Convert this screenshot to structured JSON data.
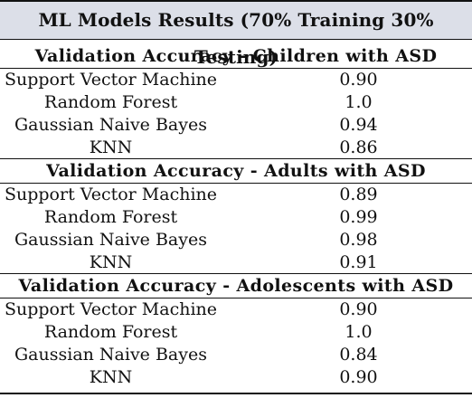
{
  "title": "ML Models Results (70% Training 30% Testing)",
  "sections": [
    {
      "heading": "Validation Accuracy - Children with ASD",
      "rows": [
        {
          "model": "Support Vector Machine",
          "accuracy": "0.90"
        },
        {
          "model": "Random Forest",
          "accuracy": "1.0"
        },
        {
          "model": "Gaussian Naive Bayes",
          "accuracy": "0.94"
        },
        {
          "model": "KNN",
          "accuracy": "0.86"
        }
      ]
    },
    {
      "heading": "Validation Accuracy - Adults with ASD",
      "rows": [
        {
          "model": "Support Vector Machine",
          "accuracy": "0.89"
        },
        {
          "model": "Random Forest",
          "accuracy": "0.99"
        },
        {
          "model": "Gaussian Naive Bayes",
          "accuracy": "0.98"
        },
        {
          "model": "KNN",
          "accuracy": "0.91"
        }
      ]
    },
    {
      "heading": "Validation Accuracy - Adolescents with ASD",
      "rows": [
        {
          "model": "Support Vector Machine",
          "accuracy": "0.90"
        },
        {
          "model": "Random Forest",
          "accuracy": "1.0"
        },
        {
          "model": "Gaussian Naive Bayes",
          "accuracy": "0.84"
        },
        {
          "model": "KNN",
          "accuracy": "0.90"
        }
      ]
    }
  ]
}
